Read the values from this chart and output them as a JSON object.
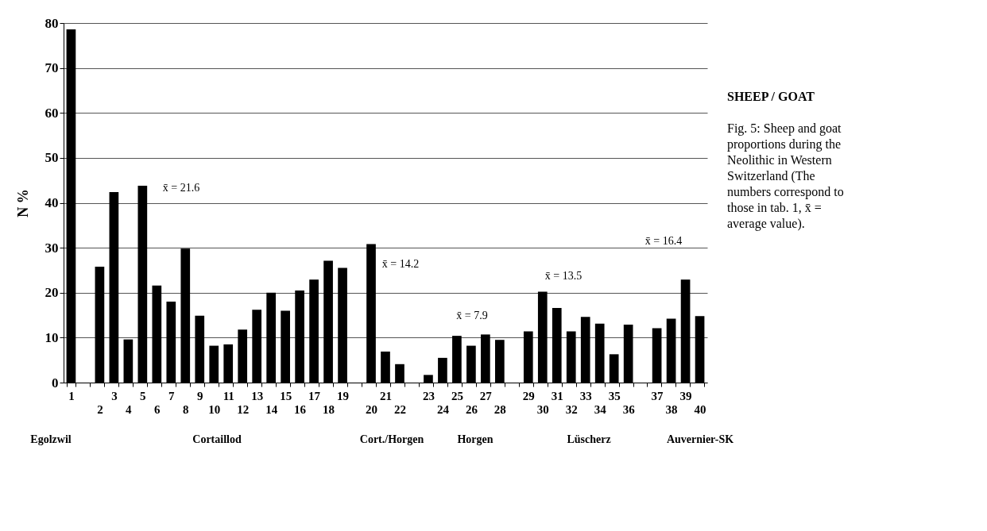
{
  "chart_data": {
    "type": "bar",
    "title": "SHEEP / GOAT",
    "subtitle": "Fig. 5: Sheep and goat proportions during the Neolithic in Western Switzerland (The numbers correspond to those in tab. 1, x̄ = average value).",
    "ylabel": "N %",
    "categories": [
      "1",
      null,
      "2",
      "3",
      "4",
      "5",
      "6",
      "7",
      "8",
      "9",
      "10",
      "11",
      "12",
      "13",
      "14",
      "15",
      "16",
      "17",
      "18",
      "19",
      null,
      "20",
      "21",
      "22",
      null,
      "23",
      "24",
      "25",
      "26",
      "27",
      "28",
      null,
      "29",
      "30",
      "31",
      "32",
      "33",
      "34",
      "35",
      "36",
      null,
      "37",
      "38",
      "39",
      "40"
    ],
    "values": [
      78.6,
      null,
      25.8,
      42.4,
      9.6,
      43.8,
      21.6,
      18.0,
      29.8,
      14.9,
      8.2,
      8.5,
      11.8,
      16.2,
      20.0,
      16.0,
      20.5,
      22.9,
      27.1,
      25.5,
      null,
      30.8,
      6.9,
      4.1,
      null,
      1.7,
      5.5,
      10.4,
      8.2,
      10.7,
      9.5,
      null,
      11.4,
      20.2,
      16.6,
      11.4,
      14.6,
      13.1,
      6.3,
      12.9,
      null,
      12.1,
      14.2,
      22.9,
      14.8
    ],
    "color": "#000000",
    "ylim": [
      0,
      80
    ],
    "yticks": [
      0,
      10,
      20,
      30,
      40,
      50,
      60,
      70,
      80
    ],
    "grid": "y",
    "annotations": [
      "x̄ = 21.6",
      "x̄ = 14.2",
      "x̄ = 7.9",
      "x̄ = 13.5",
      "x̄ = 16.4",
      "Egolzwil",
      "Cortaillod",
      "Cort./Horgen",
      "Horgen",
      "Lüscherz",
      "Auvernier-SK"
    ]
  }
}
